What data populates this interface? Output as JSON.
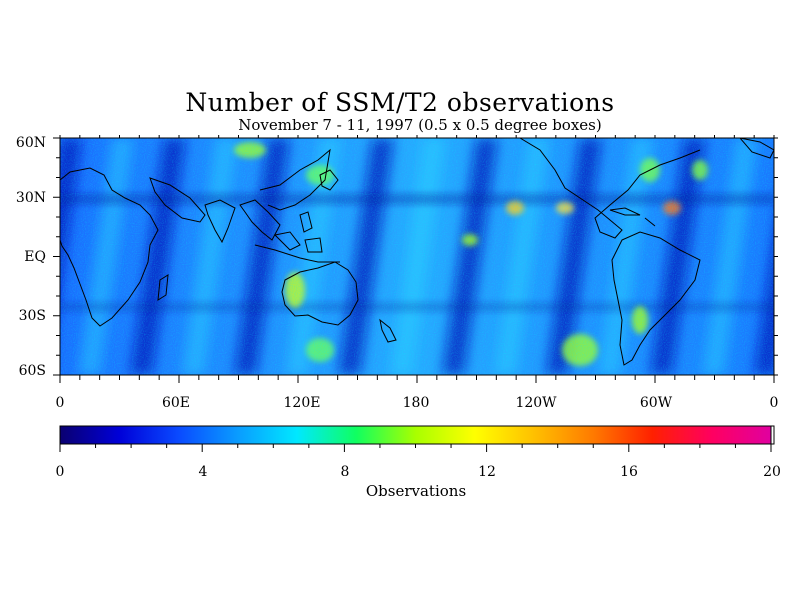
{
  "title": "Number of SSM/T2 observations",
  "subtitle": "November 7 - 11, 1997 (0.5 x 0.5 degree boxes)",
  "latitude_labels": [
    "60N",
    "30N",
    "EQ",
    "30S",
    "60S"
  ],
  "longitude_labels": [
    "0",
    "60E",
    "120E",
    "180",
    "120W",
    "60W",
    "0"
  ],
  "colorbar": {
    "title": "Observations",
    "min": 0,
    "max": 20,
    "tick_labels": [
      "0",
      "4",
      "8",
      "12",
      "16",
      "20"
    ],
    "colors": [
      "#0a0070",
      "#0000d8",
      "#0a4aff",
      "#0a9cff",
      "#00e8ff",
      "#10ff60",
      "#a8ff00",
      "#ffff00",
      "#ffc000",
      "#ff7a00",
      "#ff2000",
      "#ff0060",
      "#e000a0"
    ]
  },
  "map": {
    "projection": "equirectangular",
    "lat_range": [
      "60S",
      "60N"
    ],
    "lon_range": [
      "0",
      "0"
    ],
    "coastlines": true
  }
}
